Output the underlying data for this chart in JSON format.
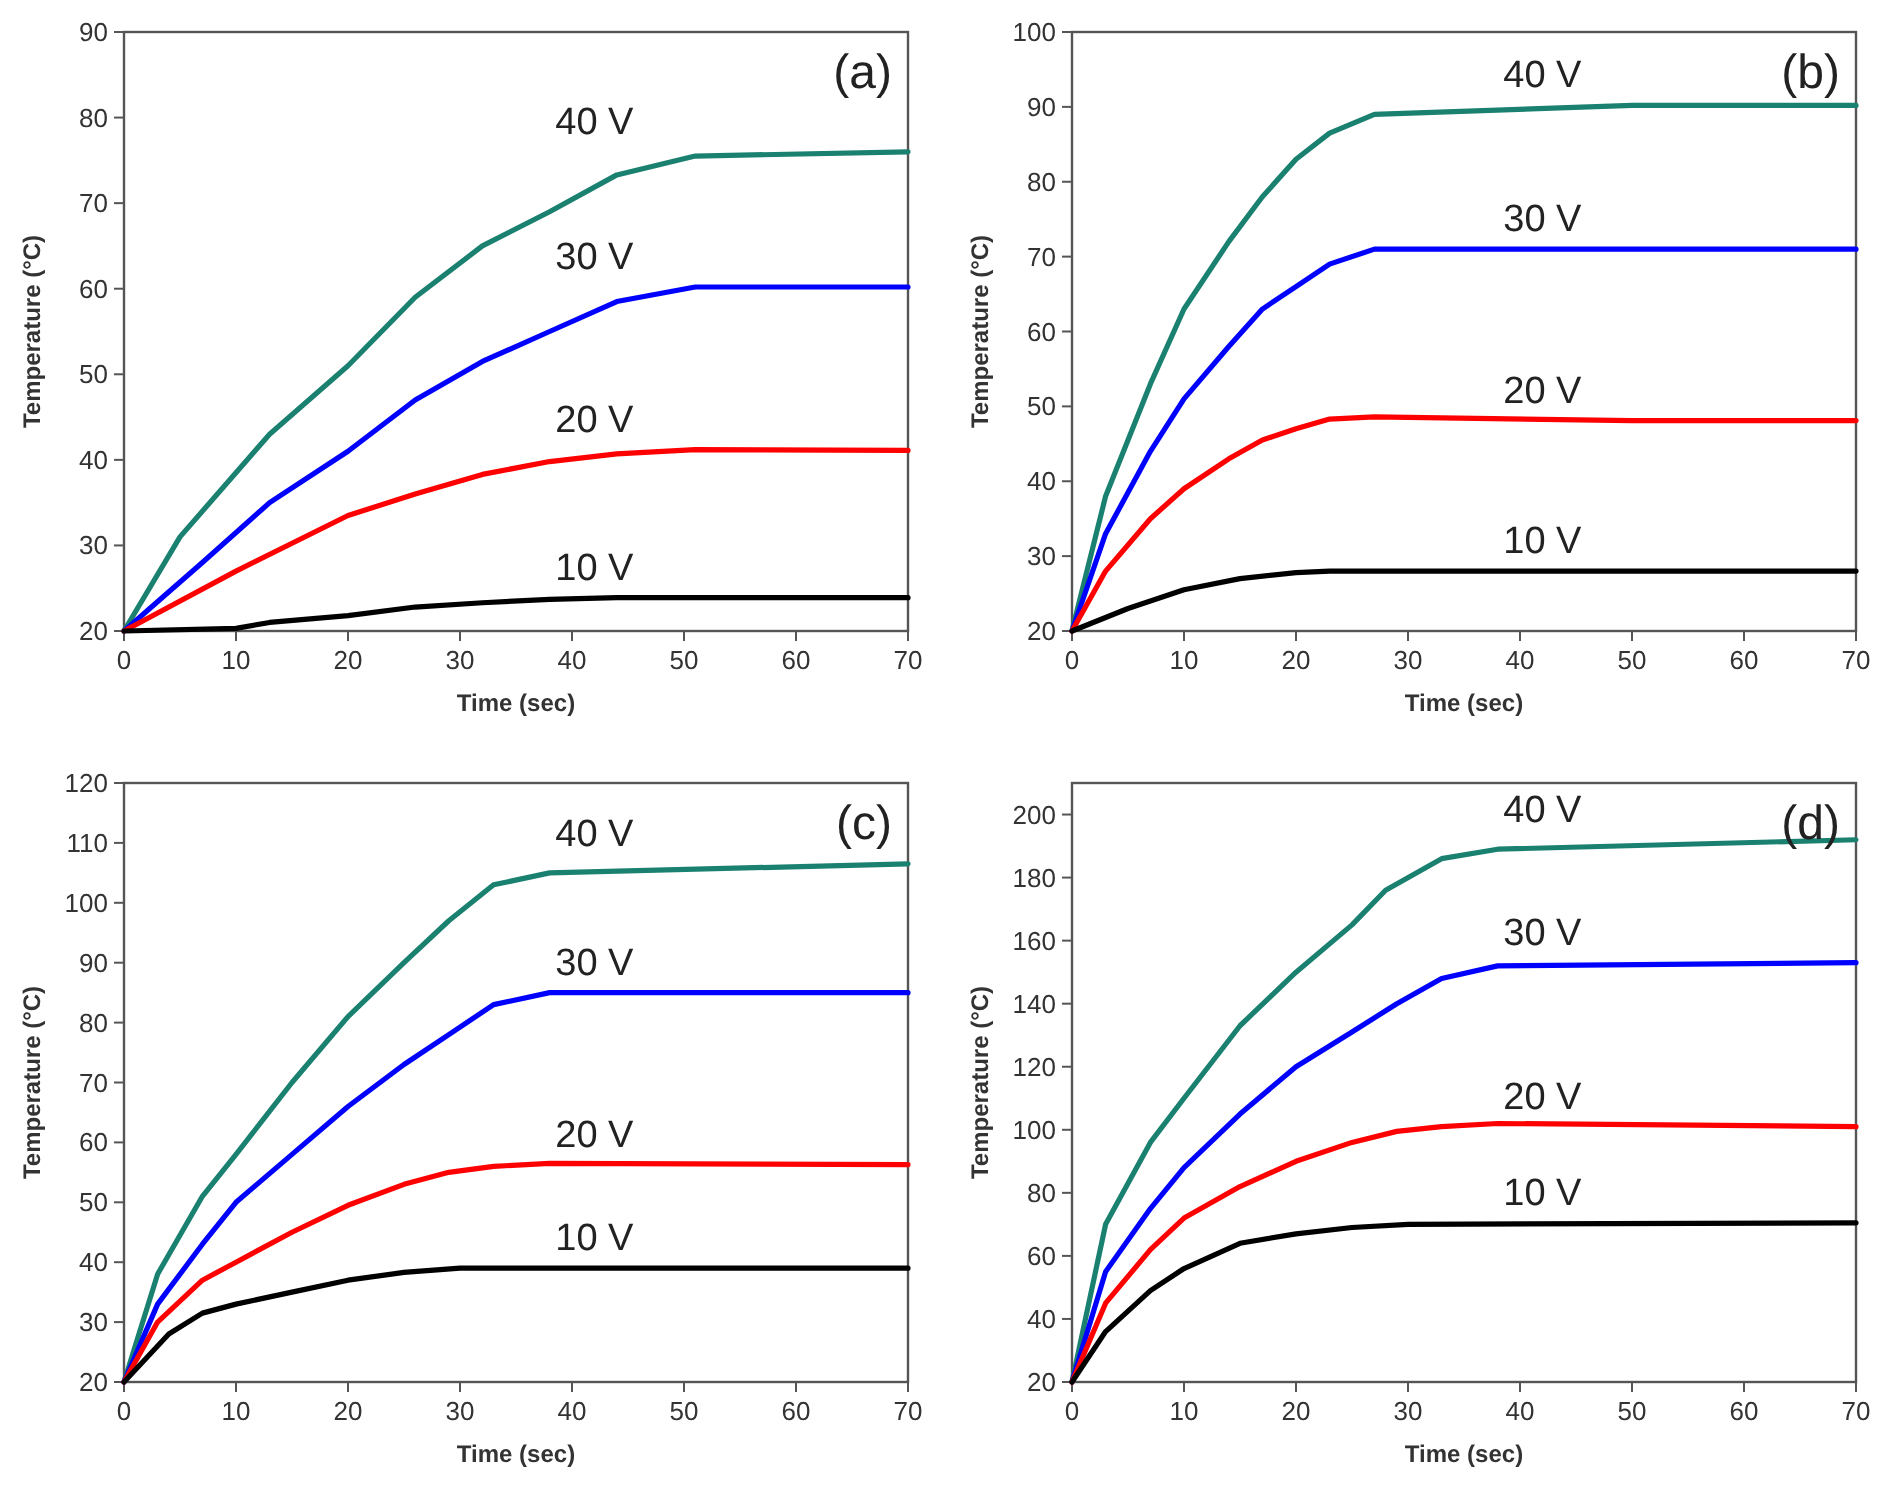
{
  "chart_data": [
    {
      "type": "line",
      "title": "(a)",
      "xlabel": "Time (sec)",
      "ylabel": "Temperature (°C)",
      "xlim": [
        0,
        70
      ],
      "xticks": [
        0,
        10,
        20,
        30,
        40,
        50,
        60,
        70
      ],
      "ylim": [
        20,
        90
      ],
      "yticks": [
        20,
        30,
        40,
        50,
        60,
        70,
        80,
        90
      ],
      "line_style": "solid",
      "series": [
        {
          "name": "40 V",
          "color": "#1a8070",
          "x": [
            0,
            5,
            13,
            20,
            26,
            32,
            38,
            44,
            51,
            70
          ],
          "values": [
            20,
            31,
            43,
            51,
            59,
            65,
            69,
            73.3,
            75.5,
            76
          ]
        },
        {
          "name": "30 V",
          "color": "#0000ff",
          "x": [
            0,
            7,
            13,
            20,
            26,
            32,
            38,
            44,
            51,
            70
          ],
          "values": [
            20,
            28,
            35,
            41,
            47,
            51.5,
            55,
            58.5,
            60.2,
            60.2
          ]
        },
        {
          "name": "20 V",
          "color": "#ff0000",
          "x": [
            0,
            10,
            20,
            26,
            32,
            38,
            44,
            51,
            70
          ],
          "values": [
            20,
            27,
            33.5,
            36,
            38.3,
            39.8,
            40.7,
            41.2,
            41.1
          ]
        },
        {
          "name": "10 V",
          "color": "#000000",
          "x": [
            0,
            10,
            13,
            20,
            26,
            32,
            38,
            44,
            70
          ],
          "values": [
            20,
            20.3,
            21,
            21.8,
            22.8,
            23.3,
            23.7,
            23.9,
            23.9
          ]
        }
      ]
    },
    {
      "type": "line",
      "title": "(b)",
      "xlabel": "Time (sec)",
      "ylabel": "Temperature (°C)",
      "xlim": [
        0,
        70
      ],
      "xticks": [
        0,
        10,
        20,
        30,
        40,
        50,
        60,
        70
      ],
      "ylim": [
        20,
        100
      ],
      "yticks": [
        20,
        30,
        40,
        50,
        60,
        70,
        80,
        90,
        100
      ],
      "line_style": "solid",
      "series": [
        {
          "name": "40 V",
          "color": "#1a8070",
          "x": [
            0,
            3,
            7,
            10,
            14,
            17,
            20,
            23,
            27,
            50,
            70
          ],
          "values": [
            20,
            38,
            53,
            63,
            72,
            78,
            83,
            86.5,
            89,
            90.2,
            90.2
          ]
        },
        {
          "name": "30 V",
          "color": "#0000ff",
          "x": [
            0,
            3,
            7,
            10,
            14,
            17,
            20,
            23,
            27,
            70
          ],
          "values": [
            20,
            33,
            44,
            51,
            58,
            63,
            66,
            69,
            71,
            71
          ]
        },
        {
          "name": "20 V",
          "color": "#ff0000",
          "x": [
            0,
            3,
            7,
            10,
            14,
            17,
            20,
            23,
            27,
            50,
            70
          ],
          "values": [
            20,
            28,
            35,
            39,
            43,
            45.5,
            47,
            48.3,
            48.6,
            48.1,
            48.1
          ]
        },
        {
          "name": "10 V",
          "color": "#000000",
          "x": [
            0,
            5,
            10,
            15,
            20,
            23,
            70
          ],
          "values": [
            20,
            23,
            25.5,
            27,
            27.8,
            28,
            28
          ]
        }
      ]
    },
    {
      "type": "line",
      "title": "(c)",
      "xlabel": "Time (sec)",
      "ylabel": "Temperature (°C)",
      "xlim": [
        0,
        70
      ],
      "xticks": [
        0,
        10,
        20,
        30,
        40,
        50,
        60,
        70
      ],
      "ylim": [
        20,
        120
      ],
      "yticks": [
        20,
        30,
        40,
        50,
        60,
        70,
        80,
        90,
        100,
        110,
        120
      ],
      "line_style": "solid",
      "series": [
        {
          "name": "40 V",
          "color": "#1a8070",
          "x": [
            0,
            3,
            7,
            10,
            15,
            20,
            25,
            29,
            33,
            38,
            70
          ],
          "values": [
            20,
            38,
            51,
            58,
            70,
            81,
            90,
            97,
            103,
            105,
            106.5
          ]
        },
        {
          "name": "30 V",
          "color": "#0000ff",
          "x": [
            0,
            3,
            7,
            10,
            15,
            20,
            25,
            29,
            33,
            38,
            70
          ],
          "values": [
            20,
            33,
            43,
            50,
            58,
            66,
            73,
            78,
            83,
            85,
            85
          ]
        },
        {
          "name": "20 V",
          "color": "#ff0000",
          "x": [
            0,
            3,
            7,
            10,
            15,
            20,
            25,
            29,
            33,
            38,
            70
          ],
          "values": [
            20,
            30,
            37,
            40,
            45,
            49.5,
            53,
            55,
            56,
            56.5,
            56.3
          ]
        },
        {
          "name": "10 V",
          "color": "#000000",
          "x": [
            0,
            2,
            4,
            7,
            10,
            15,
            20,
            25,
            30,
            70
          ],
          "values": [
            20,
            24,
            28,
            31.5,
            33,
            35,
            37,
            38.3,
            39,
            39
          ]
        }
      ]
    },
    {
      "type": "line",
      "title": "(d)",
      "xlabel": "Time (sec)",
      "ylabel": "Temperature (°C)",
      "xlim": [
        0,
        70
      ],
      "xticks": [
        0,
        10,
        20,
        30,
        40,
        50,
        60,
        70
      ],
      "ylim": [
        20,
        210
      ],
      "yticks": [
        20,
        40,
        60,
        80,
        100,
        120,
        140,
        160,
        180,
        200
      ],
      "line_style": "solid",
      "series": [
        {
          "name": "40 V",
          "color": "#1a8070",
          "x": [
            0,
            3,
            7,
            10,
            15,
            20,
            25,
            28,
            33,
            38,
            70
          ],
          "values": [
            20,
            70,
            96,
            110,
            133,
            150,
            165,
            176,
            186,
            189,
            192
          ]
        },
        {
          "name": "30 V",
          "color": "#0000ff",
          "x": [
            0,
            3,
            7,
            10,
            15,
            20,
            25,
            29,
            33,
            38,
            70
          ],
          "values": [
            20,
            55,
            75,
            88,
            105,
            120,
            131,
            140,
            148,
            152,
            153
          ]
        },
        {
          "name": "20 V",
          "color": "#ff0000",
          "x": [
            0,
            3,
            7,
            10,
            15,
            20,
            25,
            29,
            33,
            38,
            70
          ],
          "values": [
            20,
            45,
            62,
            72,
            82,
            90,
            96,
            99.5,
            101,
            102,
            101
          ]
        },
        {
          "name": "10 V",
          "color": "#000000",
          "x": [
            0,
            3,
            7,
            10,
            15,
            20,
            25,
            30,
            70
          ],
          "values": [
            20,
            36,
            49,
            56,
            64,
            67,
            69,
            70,
            70.5
          ]
        }
      ]
    }
  ]
}
